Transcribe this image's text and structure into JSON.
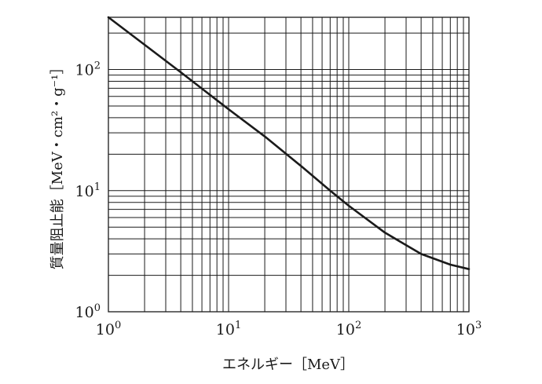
{
  "chart_data": {
    "type": "line",
    "title": "",
    "xlabel": "エネルギー［MeV］",
    "ylabel": "質量阻止能［MeV・cm²・g⁻¹］",
    "x_scale": "log",
    "y_scale": "log",
    "xlim": [
      1,
      1000
    ],
    "ylim": [
      1,
      270
    ],
    "grid": true,
    "x_ticks": [
      {
        "value": 1,
        "base": "10",
        "exp": "0"
      },
      {
        "value": 10,
        "base": "10",
        "exp": "1"
      },
      {
        "value": 100,
        "base": "10",
        "exp": "2"
      },
      {
        "value": 1000,
        "base": "10",
        "exp": "3"
      }
    ],
    "y_ticks": [
      {
        "value": 1,
        "base": "10",
        "exp": "0"
      },
      {
        "value": 10,
        "base": "10",
        "exp": "1"
      },
      {
        "value": 100,
        "base": "10",
        "exp": "2"
      }
    ],
    "series": [
      {
        "color": "#1a1a1a",
        "x": [
          1,
          2,
          4,
          10,
          20,
          40,
          70,
          100,
          200,
          400,
          700,
          1000
        ],
        "y": [
          270,
          160,
          95,
          47,
          28,
          16,
          10,
          7.5,
          4.5,
          3.0,
          2.45,
          2.25
        ]
      }
    ]
  }
}
